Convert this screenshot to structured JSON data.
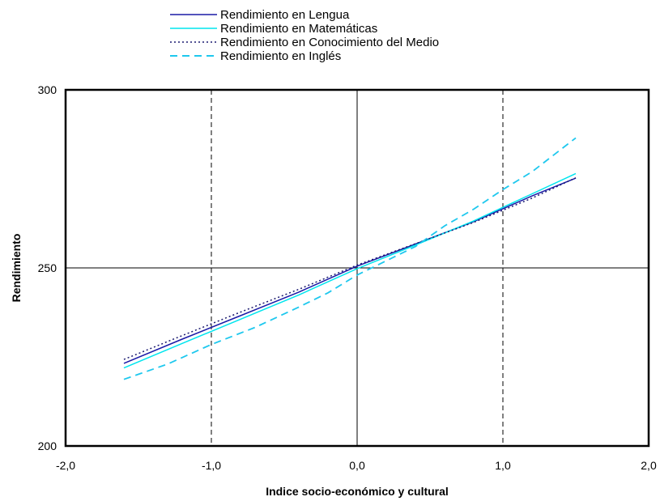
{
  "chart_data": {
    "type": "line",
    "xlabel": "Indice socio-económico y cultural",
    "ylabel": "Rendimiento",
    "xlim": [
      -2.0,
      2.0
    ],
    "ylim": [
      200,
      300
    ],
    "x_ticks": [
      "-2,0",
      "-1,0",
      "0,0",
      "1,0",
      "2,0"
    ],
    "y_ticks": [
      "200",
      "250",
      "300"
    ],
    "reference_lines": {
      "vertical_dashed": [
        -1.0,
        1.0
      ],
      "vertical_solid": [
        0.0
      ],
      "horizontal_solid": [
        250
      ]
    },
    "legend_position": "top",
    "series": [
      {
        "name": "Rendimiento en Lengua",
        "color": "#1a1aa6",
        "style": "solid",
        "points": [
          [
            -1.6,
            223.2
          ],
          [
            -1.2,
            230.0
          ],
          [
            -0.8,
            236.6
          ],
          [
            -0.4,
            243.2
          ],
          [
            0.0,
            250.5
          ],
          [
            0.4,
            256.7
          ],
          [
            0.8,
            263.0
          ],
          [
            1.2,
            270.2
          ],
          [
            1.5,
            275.2
          ]
        ]
      },
      {
        "name": "Rendimiento en Matemáticas",
        "color": "#00e5ee",
        "style": "solid",
        "points": [
          [
            -1.6,
            221.9
          ],
          [
            -1.2,
            228.8
          ],
          [
            -0.8,
            235.6
          ],
          [
            -0.4,
            242.4
          ],
          [
            0.0,
            249.8
          ],
          [
            0.4,
            256.4
          ],
          [
            0.8,
            263.2
          ],
          [
            1.2,
            270.8
          ],
          [
            1.5,
            276.5
          ]
        ]
      },
      {
        "name": "Rendimiento en Conocimiento del Medio",
        "color": "#1a1a70",
        "style": "dotted",
        "points": [
          [
            -1.6,
            224.3
          ],
          [
            -1.2,
            231.0
          ],
          [
            -0.8,
            237.6
          ],
          [
            -0.4,
            244.0
          ],
          [
            0.0,
            250.8
          ],
          [
            0.4,
            256.8
          ],
          [
            0.8,
            262.8
          ],
          [
            1.2,
            269.6
          ],
          [
            1.5,
            275.3
          ]
        ]
      },
      {
        "name": "Rendimiento en Inglés",
        "color": "#1ec8ee",
        "style": "dashed",
        "points": [
          [
            -1.6,
            218.7
          ],
          [
            -1.3,
            223.0
          ],
          [
            -1.0,
            228.5
          ],
          [
            -0.7,
            233.3
          ],
          [
            -0.4,
            239.0
          ],
          [
            -0.2,
            243.0
          ],
          [
            0.0,
            248.0
          ],
          [
            0.2,
            252.0
          ],
          [
            0.4,
            256.0
          ],
          [
            0.6,
            261.8
          ],
          [
            0.8,
            266.5
          ],
          [
            1.0,
            272.0
          ],
          [
            1.2,
            277.0
          ],
          [
            1.5,
            286.5
          ]
        ]
      }
    ]
  }
}
